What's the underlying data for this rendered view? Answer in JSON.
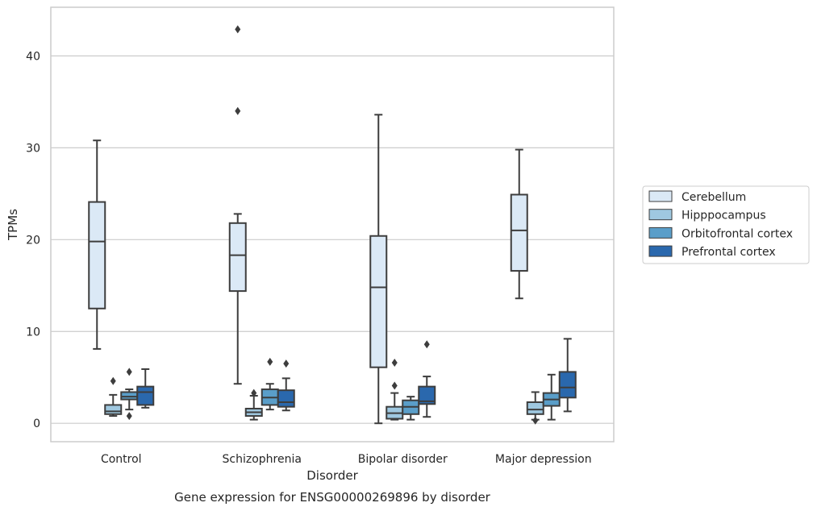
{
  "chart_data": {
    "type": "box",
    "title": "",
    "caption": "Gene expression for ENSG00000269896 by disorder",
    "xlabel": "Disorder",
    "ylabel": "TPMs",
    "ylim": [
      -2,
      45.3
    ],
    "yticks": [
      0,
      10,
      20,
      30,
      40
    ],
    "grid": "horizontal",
    "legend_position": "right",
    "categories": [
      "Control",
      "Schizophrenia",
      "Bipolar disorder",
      "Major depression"
    ],
    "series": [
      {
        "name": "Cerebellum",
        "color": "#dbe9f6",
        "boxes": [
          {
            "whislo": 8.1,
            "q1": 12.5,
            "med": 19.8,
            "q3": 24.1,
            "whishi": 30.8,
            "fliers": []
          },
          {
            "whislo": 4.3,
            "q1": 14.4,
            "med": 18.3,
            "q3": 21.8,
            "whishi": 22.8,
            "fliers": [
              34.0,
              42.9
            ]
          },
          {
            "whislo": 0.0,
            "q1": 6.1,
            "med": 14.8,
            "q3": 20.4,
            "whishi": 33.6,
            "fliers": []
          },
          {
            "whislo": 13.6,
            "q1": 16.6,
            "med": 21.0,
            "q3": 24.9,
            "whishi": 29.8,
            "fliers": []
          }
        ]
      },
      {
        "name": "Hipppocampus",
        "color": "#9fc8e0",
        "boxes": [
          {
            "whislo": 0.8,
            "q1": 1.0,
            "med": 1.3,
            "q3": 2.0,
            "whishi": 3.1,
            "fliers": [
              4.6
            ]
          },
          {
            "whislo": 0.4,
            "q1": 0.8,
            "med": 1.2,
            "q3": 1.6,
            "whishi": 3.0,
            "fliers": [
              3.3
            ]
          },
          {
            "whislo": 0.4,
            "q1": 0.5,
            "med": 1.1,
            "q3": 1.8,
            "whishi": 3.3,
            "fliers": [
              4.1,
              6.6
            ]
          },
          {
            "whislo": 0.4,
            "q1": 1.0,
            "med": 1.5,
            "q3": 2.3,
            "whishi": 3.4,
            "fliers": [
              0.3
            ]
          }
        ]
      },
      {
        "name": "Orbitofrontal cortex",
        "color": "#5a9ec9",
        "boxes": [
          {
            "whislo": 1.5,
            "q1": 2.6,
            "med": 2.9,
            "q3": 3.4,
            "whishi": 3.7,
            "fliers": [
              0.8,
              5.6
            ]
          },
          {
            "whislo": 1.5,
            "q1": 2.0,
            "med": 2.8,
            "q3": 3.7,
            "whishi": 4.3,
            "fliers": [
              6.7
            ]
          },
          {
            "whislo": 0.4,
            "q1": 1.0,
            "med": 1.8,
            "q3": 2.5,
            "whishi": 2.9,
            "fliers": []
          },
          {
            "whislo": 0.4,
            "q1": 1.9,
            "med": 2.6,
            "q3": 3.3,
            "whishi": 5.3,
            "fliers": []
          }
        ]
      },
      {
        "name": "Prefrontal cortex",
        "color": "#2a68ad",
        "boxes": [
          {
            "whislo": 1.7,
            "q1": 2.0,
            "med": 3.4,
            "q3": 4.0,
            "whishi": 5.9,
            "fliers": []
          },
          {
            "whislo": 1.4,
            "q1": 1.8,
            "med": 2.3,
            "q3": 3.6,
            "whishi": 4.9,
            "fliers": [
              6.5
            ]
          },
          {
            "whislo": 0.7,
            "q1": 2.1,
            "med": 2.4,
            "q3": 4.0,
            "whishi": 5.1,
            "fliers": [
              8.6
            ]
          },
          {
            "whislo": 1.3,
            "q1": 2.8,
            "med": 3.9,
            "q3": 5.6,
            "whishi": 9.2,
            "fliers": []
          }
        ]
      }
    ]
  }
}
